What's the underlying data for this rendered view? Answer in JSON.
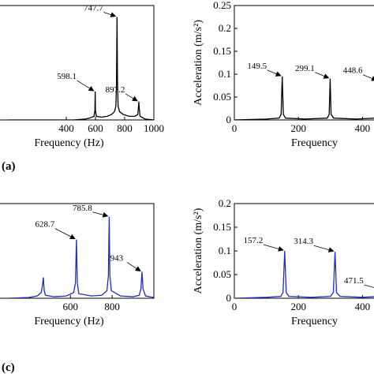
{
  "panel_labels": {
    "a": "(a)",
    "c": "(c)"
  },
  "chart_data": [
    {
      "id": "a",
      "type": "line",
      "color": "#000000",
      "xlabel": "Frequency (Hz)",
      "ylabel": "",
      "xlim": [
        0,
        1000
      ],
      "ylim": [
        0,
        0.25
      ],
      "xticks": [
        "400",
        "600",
        "800",
        "1000"
      ],
      "x": [
        0,
        150,
        300,
        450,
        530,
        560,
        590,
        596,
        598.1,
        600,
        606,
        640,
        680,
        710,
        730,
        740,
        744,
        747.7,
        751,
        755,
        765,
        790,
        830,
        870,
        890,
        895,
        897.2,
        899,
        905,
        940,
        1000
      ],
      "y": [
        0,
        0,
        0,
        0,
        0.002,
        0.004,
        0.008,
        0.02,
        0.062,
        0.02,
        0.008,
        0.006,
        0.008,
        0.012,
        0.018,
        0.03,
        0.08,
        0.225,
        0.08,
        0.03,
        0.018,
        0.012,
        0.008,
        0.008,
        0.012,
        0.03,
        0.04,
        0.03,
        0.008,
        0.002,
        0
      ],
      "annotations": [
        {
          "text": "598.1",
          "x": 598.1,
          "y": 0.062
        },
        {
          "text": "747.7",
          "x": 747.7,
          "y": 0.225
        },
        {
          "text": "897.2",
          "x": 897.2,
          "y": 0.04
        }
      ]
    },
    {
      "id": "b",
      "type": "line",
      "color": "#000000",
      "xlabel": "Frequency",
      "ylabel": "Acceleration (m/s²)",
      "xlim": [
        0,
        500
      ],
      "ylim": [
        0,
        0.25
      ],
      "xticks": [
        "0",
        "200",
        "400"
      ],
      "yticks": [
        "0",
        "0.05",
        "0.1",
        "0.15",
        "0.2",
        "0.25"
      ],
      "x": [
        0,
        100,
        140,
        146,
        149.5,
        153,
        160,
        220,
        290,
        296,
        299.1,
        302,
        310,
        380,
        440,
        446,
        448.6,
        451,
        460,
        500
      ],
      "y": [
        0,
        0.002,
        0.004,
        0.012,
        0.095,
        0.012,
        0.004,
        0.002,
        0.004,
        0.012,
        0.09,
        0.012,
        0.004,
        0.002,
        0.004,
        0.012,
        0.085,
        0.012,
        0.004,
        0.002
      ],
      "annotations": [
        {
          "text": "149.5",
          "x": 149.5,
          "y": 0.095
        },
        {
          "text": "299.1",
          "x": 299.1,
          "y": 0.09
        },
        {
          "text": "448.6",
          "x": 448.6,
          "y": 0.085
        }
      ]
    },
    {
      "id": "c",
      "type": "line",
      "color": "#1f2fb5",
      "xlabel": "Frequency (Hz)",
      "ylabel": "",
      "xlim": [
        300,
        1000
      ],
      "ylim": [
        0,
        0.25
      ],
      "xticks": [
        "600",
        "800"
      ],
      "x": [
        300,
        400,
        440,
        460,
        466,
        470,
        474,
        480,
        520,
        580,
        615,
        624,
        628.7,
        633,
        640,
        700,
        750,
        775,
        782,
        785.8,
        789,
        796,
        840,
        900,
        930,
        938,
        943,
        948,
        960,
        1000
      ],
      "y": [
        0,
        0.002,
        0.006,
        0.015,
        0.035,
        0.055,
        0.02,
        0.008,
        0.004,
        0.006,
        0.015,
        0.04,
        0.155,
        0.04,
        0.012,
        0.006,
        0.008,
        0.02,
        0.06,
        0.215,
        0.06,
        0.02,
        0.006,
        0.004,
        0.008,
        0.025,
        0.07,
        0.025,
        0.006,
        0.002
      ],
      "annotations": [
        {
          "text": "628.7",
          "x": 628.7,
          "y": 0.155
        },
        {
          "text": "785.8",
          "x": 785.8,
          "y": 0.215
        },
        {
          "text": "943",
          "x": 943,
          "y": 0.07
        }
      ]
    },
    {
      "id": "d",
      "type": "line",
      "color": "#1f2fb5",
      "xlabel": "Frequency",
      "ylabel": "Acceleration (m/s²)",
      "xlim": [
        0,
        500
      ],
      "ylim": [
        0,
        0.2
      ],
      "xticks": [
        "0",
        "200",
        "400"
      ],
      "yticks": [
        "0",
        "0.05",
        "0.1",
        "0.15",
        "0.2"
      ],
      "x": [
        0,
        100,
        145,
        152,
        157.2,
        162,
        170,
        240,
        300,
        309,
        314.3,
        319,
        330,
        400,
        460,
        470,
        474,
        478,
        500
      ],
      "y": [
        0,
        0.002,
        0.004,
        0.012,
        0.1,
        0.012,
        0.004,
        0.002,
        0.004,
        0.012,
        0.098,
        0.012,
        0.004,
        0.002,
        0.004,
        0.008,
        0.012,
        0.008,
        0.006
      ],
      "annotations": [
        {
          "text": "157.2",
          "x": 157.2,
          "y": 0.1
        },
        {
          "text": "314.3",
          "x": 314.3,
          "y": 0.098
        },
        {
          "text": "471.5",
          "x": 471.5,
          "y": 0.015
        }
      ]
    }
  ]
}
